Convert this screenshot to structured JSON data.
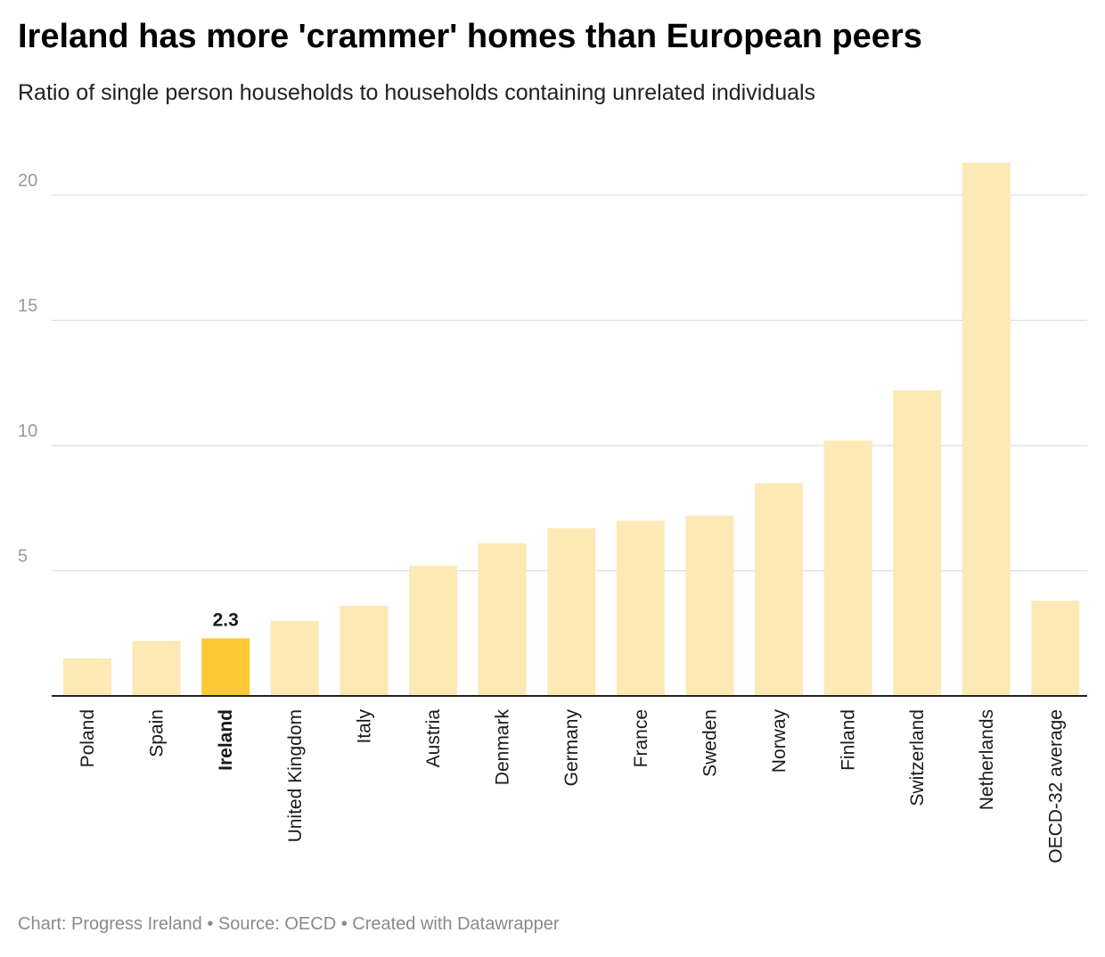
{
  "header": {
    "title": "Ireland has more 'crammer' homes than European peers",
    "subtitle": "Ratio of single person households to households containing unrelated individuals"
  },
  "footer": {
    "text": "Chart: Progress Ireland • Source: OECD • Created with Datawrapper"
  },
  "colors": {
    "bar": "#fde9b6",
    "highlight": "#fcc934",
    "grid": "#dddddd",
    "axis": "#222222",
    "tick_label": "#9a9a9a"
  },
  "chart_data": {
    "type": "bar",
    "title": "Ireland has more 'crammer' homes than European peers",
    "subtitle": "Ratio of single person households to households containing unrelated individuals",
    "categories": [
      "Poland",
      "Spain",
      "Ireland",
      "United Kingdom",
      "Italy",
      "Austria",
      "Denmark",
      "Germany",
      "France",
      "Sweden",
      "Norway",
      "Finland",
      "Switzerland",
      "Netherlands",
      "OECD-32 average"
    ],
    "values": [
      1.5,
      2.2,
      2.3,
      3.0,
      3.6,
      5.2,
      6.1,
      6.7,
      7.0,
      7.2,
      8.5,
      10.2,
      12.2,
      21.3,
      3.8
    ],
    "highlight_category": "Ireland",
    "data_labels": [
      {
        "category": "Ireland",
        "text": "2.3"
      }
    ],
    "ylim": [
      0,
      22
    ],
    "yticks": [
      5,
      10,
      15,
      20
    ],
    "grid": true,
    "xlabel": "",
    "ylabel": ""
  }
}
